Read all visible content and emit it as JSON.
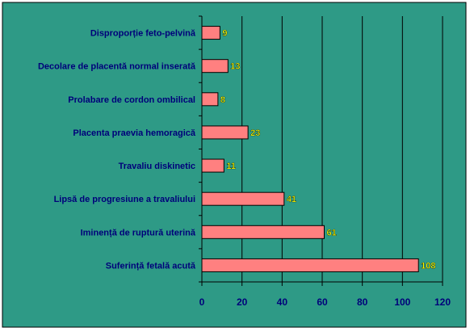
{
  "colors": {
    "background": "#2e9a86",
    "plot_area": "#2e9a86",
    "bar_fill": "#ff8080",
    "bar_stroke": "#000000",
    "label_text": "#00007a",
    "value_text": "#ffff00",
    "gridline": "#000000"
  },
  "chart_data": {
    "type": "bar",
    "orientation": "horizontal",
    "title": "",
    "xlabel": "",
    "ylabel": "",
    "categories": [
      "Disproporție feto-pelvină",
      "Decolare de placentă normal inserată",
      "Prolabare de cordon ombilical",
      "Placenta praevia hemoragică",
      "Travaliu diskinetic",
      "Lipsă de progresiune a travaliului",
      "Iminență de ruptură uterină",
      "Suferință fetală acută"
    ],
    "values": [
      9,
      13,
      8,
      23,
      11,
      41,
      61,
      108
    ],
    "data_labels": [
      "9",
      "13",
      "8",
      "23",
      "11",
      "41",
      "61",
      "108"
    ],
    "xlim": [
      0,
      120
    ],
    "ticks": [
      0,
      20,
      40,
      60,
      80,
      100,
      120
    ],
    "tick_labels": [
      "0",
      "20",
      "40",
      "60",
      "80",
      "100",
      "120"
    ],
    "grid": true,
    "legend": "none"
  }
}
